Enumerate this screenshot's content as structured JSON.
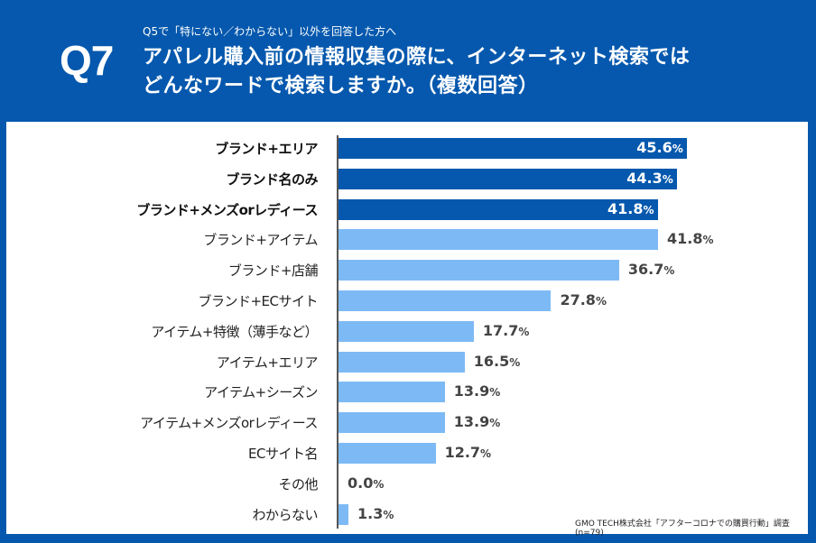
{
  "header": {
    "question_number": "Q7",
    "subtitle": "Q5で「特にない／わからない」以外を回答した方へ",
    "title_line1": "アパレル購入前の情報収集の際に、インターネット検索では",
    "title_line2": "どんなワードで検索しますか。（複数回答）"
  },
  "colors": {
    "background": "#0558ad",
    "highlight_bar": "#0558ad",
    "normal_bar": "#7dbaf5"
  },
  "chart_data": {
    "type": "bar",
    "orientation": "horizontal",
    "title": "アパレル購入前の情報収集の際に、インターネット検索では どんなワードで検索しますか。（複数回答）",
    "unit": "%",
    "xlim": [
      0,
      60
    ],
    "grid": false,
    "categories": [
      "ブランド+エリア",
      "ブランド名のみ",
      "ブランド+メンズorレディース",
      "ブランド+アイテム",
      "ブランド+店舗",
      "ブランド+ECサイト",
      "アイテム+特徴（薄手など）",
      "アイテム+エリア",
      "アイテム+シーズン",
      "アイテム+メンズorレディース",
      "ECサイト名",
      "その他",
      "わからない"
    ],
    "values": [
      45.6,
      44.3,
      41.8,
      41.8,
      36.7,
      27.8,
      17.7,
      16.5,
      13.9,
      13.9,
      12.7,
      0.0,
      1.3
    ],
    "value_labels": [
      "45.6",
      "44.3",
      "41.8",
      "41.8",
      "36.7",
      "27.8",
      "17.7",
      "16.5",
      "13.9",
      "13.9",
      "12.7",
      "0.0",
      "1.3"
    ],
    "highlighted": [
      true,
      true,
      true,
      false,
      false,
      false,
      false,
      false,
      false,
      false,
      false,
      false,
      false
    ]
  },
  "footer": {
    "source": "GMO TECH株式会社「アフターコロナでの購買行動」調査 (n=79)"
  }
}
